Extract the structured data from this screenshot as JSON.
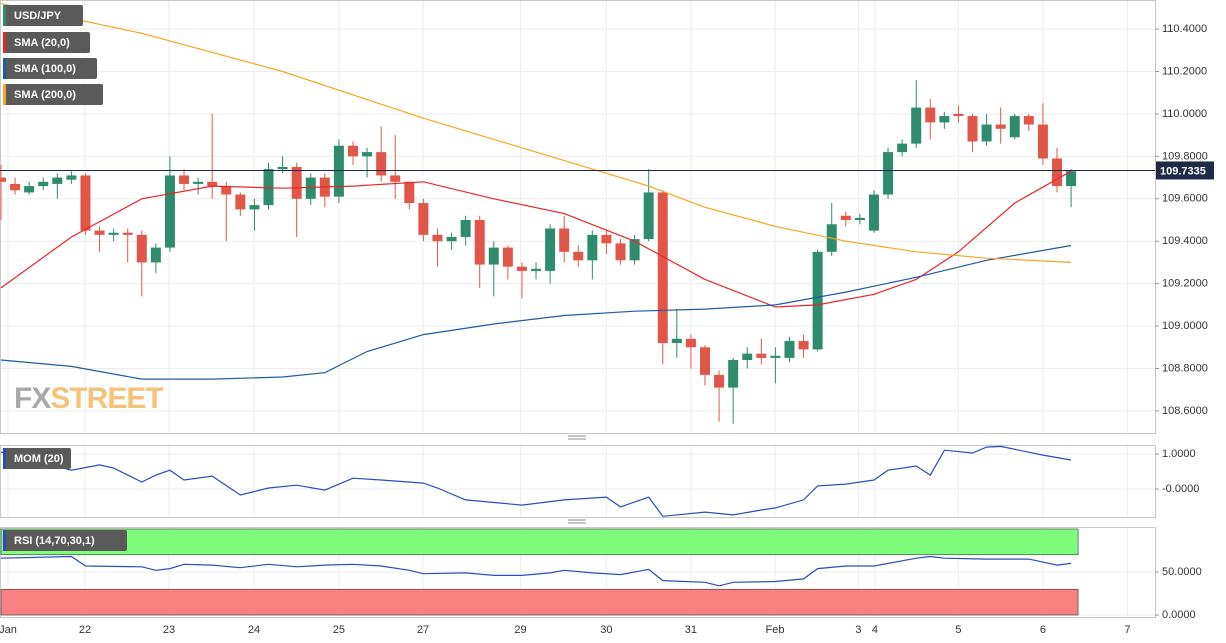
{
  "chart_data": [
    {
      "type": "candlestick",
      "candles": {
        "name": "USD/JPY",
        "up_color": "#2e8b6e",
        "down_color": "#e0574a",
        "open": [
          109.7,
          109.67,
          109.63,
          109.66,
          109.67,
          109.69,
          109.71,
          109.45,
          109.43,
          109.44,
          109.43,
          109.3,
          109.37,
          109.71,
          109.67,
          109.68,
          109.66,
          109.62,
          109.55,
          109.57,
          109.74,
          109.75,
          109.6,
          109.7,
          109.61,
          109.85,
          109.8,
          109.82,
          109.71,
          109.68,
          109.58,
          109.43,
          109.4,
          109.42,
          109.5,
          109.29,
          109.37,
          109.28,
          109.26,
          109.26,
          109.46,
          109.35,
          109.31,
          109.43,
          109.39,
          109.31,
          109.41,
          109.63,
          108.92,
          108.94,
          108.9,
          108.77,
          108.71,
          108.84,
          108.87,
          108.85,
          108.85,
          108.93,
          108.89,
          109.35,
          109.52,
          109.5,
          109.45,
          109.62,
          109.82,
          109.86,
          110.03,
          109.96,
          110.0,
          109.99,
          109.87,
          109.95,
          109.89,
          109.99,
          109.95,
          109.79,
          109.66
        ],
        "high": [
          109.76,
          109.7,
          109.68,
          109.7,
          109.72,
          109.73,
          109.72,
          109.47,
          109.46,
          109.46,
          109.45,
          109.39,
          109.8,
          109.74,
          109.7,
          110.0,
          109.68,
          109.63,
          109.6,
          109.77,
          109.8,
          109.77,
          109.72,
          109.72,
          109.88,
          109.87,
          109.84,
          109.94,
          109.9,
          109.62,
          109.6,
          109.46,
          109.44,
          109.52,
          109.52,
          109.4,
          109.38,
          109.3,
          109.3,
          109.48,
          109.52,
          109.38,
          109.45,
          109.45,
          109.41,
          109.43,
          109.74,
          109.64,
          109.08,
          108.96,
          108.91,
          108.79,
          108.85,
          108.9,
          108.94,
          108.9,
          108.95,
          108.96,
          109.36,
          109.58,
          109.54,
          109.53,
          109.64,
          109.84,
          109.88,
          110.16,
          110.07,
          110.01,
          110.04,
          110.0,
          110.0,
          110.03,
          110.0,
          110.0,
          110.05,
          109.84,
          109.74
        ],
        "low": [
          109.5,
          109.62,
          109.62,
          109.64,
          109.6,
          109.67,
          109.43,
          109.35,
          109.4,
          109.3,
          109.14,
          109.25,
          109.35,
          109.64,
          109.62,
          109.6,
          109.4,
          109.52,
          109.45,
          109.55,
          109.72,
          109.42,
          109.57,
          109.56,
          109.58,
          109.76,
          109.7,
          109.68,
          109.6,
          109.55,
          109.4,
          109.28,
          109.36,
          109.38,
          109.18,
          109.14,
          109.22,
          109.13,
          109.22,
          109.2,
          109.3,
          109.28,
          109.22,
          109.34,
          109.29,
          109.29,
          109.4,
          108.82,
          108.85,
          108.8,
          108.72,
          108.55,
          108.54,
          108.8,
          108.82,
          108.73,
          108.83,
          108.85,
          108.88,
          109.33,
          109.47,
          109.48,
          109.44,
          109.6,
          109.8,
          109.84,
          109.88,
          109.93,
          109.96,
          109.82,
          109.85,
          109.86,
          109.88,
          109.92,
          109.76,
          109.63,
          109.56
        ],
        "close": [
          109.68,
          109.64,
          109.66,
          109.68,
          109.7,
          109.71,
          109.45,
          109.43,
          109.44,
          109.43,
          109.3,
          109.37,
          109.71,
          109.67,
          109.68,
          109.66,
          109.62,
          109.55,
          109.57,
          109.74,
          109.75,
          109.6,
          109.7,
          109.61,
          109.85,
          109.8,
          109.82,
          109.71,
          109.68,
          109.58,
          109.43,
          109.4,
          109.42,
          109.5,
          109.29,
          109.37,
          109.28,
          109.26,
          109.27,
          109.46,
          109.35,
          109.31,
          109.43,
          109.39,
          109.31,
          109.41,
          109.63,
          108.92,
          108.94,
          108.9,
          108.77,
          108.71,
          108.84,
          108.87,
          108.85,
          108.86,
          108.93,
          108.89,
          109.35,
          109.48,
          109.5,
          109.51,
          109.62,
          109.82,
          109.86,
          110.03,
          109.96,
          109.99,
          109.99,
          109.87,
          109.95,
          109.93,
          109.99,
          109.95,
          109.79,
          109.66,
          109.73
        ]
      },
      "overlays": [
        {
          "name": "SMA (20,0)",
          "color": "#e8262a",
          "x": [
            0,
            5,
            10,
            15,
            20,
            25,
            30,
            35,
            40,
            45,
            50,
            55,
            58,
            62,
            65,
            68,
            72,
            76
          ],
          "values": [
            109.18,
            109.42,
            109.6,
            109.66,
            109.65,
            109.66,
            109.68,
            109.6,
            109.53,
            109.4,
            109.22,
            109.09,
            109.1,
            109.15,
            109.22,
            109.35,
            109.58,
            109.73
          ]
        },
        {
          "name": "SMA (100,0)",
          "color": "#1e5aa8",
          "x": [
            0,
            5,
            10,
            15,
            20,
            23,
            26,
            30,
            35,
            40,
            45,
            50,
            55,
            60,
            65,
            70,
            76
          ],
          "values": [
            108.84,
            108.81,
            108.75,
            108.75,
            108.76,
            108.78,
            108.88,
            108.96,
            109.01,
            109.05,
            109.07,
            109.08,
            109.1,
            109.16,
            109.23,
            109.31,
            109.38
          ]
        },
        {
          "name": "SMA (200,0)",
          "color": "#f5a623",
          "x": [
            0,
            10,
            20,
            30,
            40,
            46,
            50,
            55,
            60,
            65,
            70,
            76
          ],
          "values": [
            110.52,
            110.38,
            110.2,
            109.98,
            109.78,
            109.66,
            109.56,
            109.47,
            109.4,
            109.35,
            109.32,
            109.3
          ]
        }
      ],
      "last_price": {
        "value": 109.7335,
        "label": "109.7335"
      },
      "ylim": [
        108.496,
        110.537
      ],
      "yticks": [
        {
          "value": 108.6,
          "label": "108.6000"
        },
        {
          "value": 108.8,
          "label": "108.8000"
        },
        {
          "value": 109.0,
          "label": "109.0000"
        },
        {
          "value": 109.2,
          "label": "109.2000"
        },
        {
          "value": 109.4,
          "label": "109.4000"
        },
        {
          "value": 109.6,
          "label": "109.6000"
        },
        {
          "value": 109.8,
          "label": "109.8000"
        },
        {
          "value": 110.0,
          "label": "110.0000"
        },
        {
          "value": 110.2,
          "label": "110.2000"
        },
        {
          "value": 110.4,
          "label": "110.4000"
        }
      ],
      "xlim": [
        -0.07,
        81.96
      ],
      "xticks": [
        {
          "value": 0.5,
          "label": "Jan"
        },
        {
          "value": 5.97,
          "label": "22"
        },
        {
          "value": 11.93,
          "label": "23"
        },
        {
          "value": 17.97,
          "label": "24"
        },
        {
          "value": 24.0,
          "label": "25"
        },
        {
          "value": 29.97,
          "label": "27"
        },
        {
          "value": 36.9,
          "label": "29"
        },
        {
          "value": 43.0,
          "label": "30"
        },
        {
          "value": 49.0,
          "label": "31"
        },
        {
          "value": 54.97,
          "label": "Feb"
        },
        {
          "value": 60.9,
          "label": "3"
        },
        {
          "value": 62.07,
          "label": "4"
        },
        {
          "value": 68.0,
          "label": "5"
        },
        {
          "value": 74.0,
          "label": "6"
        },
        {
          "value": 80.0,
          "label": "7"
        }
      ],
      "watermark": [
        "FX",
        "STREET"
      ]
    },
    {
      "type": "line",
      "series": [
        {
          "name": "MOM (20)",
          "color": "#2a4cc0",
          "x": [
            0,
            5,
            7,
            8,
            10,
            11,
            12,
            13,
            15,
            17,
            19,
            21,
            23,
            25,
            27,
            30,
            31,
            33,
            37,
            40,
            43,
            44,
            46,
            47,
            50,
            52,
            54,
            55,
            57,
            58,
            60,
            62,
            63,
            65,
            66,
            67,
            69,
            70,
            71,
            74,
            76
          ],
          "values": [
            1.06,
            0.54,
            0.69,
            0.6,
            0.2,
            0.4,
            0.54,
            0.26,
            0.37,
            -0.17,
            0.03,
            0.11,
            -0.03,
            0.31,
            0.26,
            0.17,
            0.03,
            -0.31,
            -0.46,
            -0.31,
            -0.23,
            -0.51,
            -0.23,
            -0.78,
            -0.66,
            -0.74,
            -0.6,
            -0.54,
            -0.31,
            0.09,
            0.14,
            0.26,
            0.54,
            0.66,
            0.4,
            1.11,
            1.03,
            1.2,
            1.22,
            0.97,
            0.83
          ]
        }
      ],
      "ylim": [
        -0.8,
        1.26
      ],
      "yticks": [
        {
          "value": 1,
          "label": "1.0000"
        },
        {
          "value": 0,
          "label": "-0.0000"
        }
      ]
    },
    {
      "type": "line",
      "series": [
        {
          "name": "RSI (14,70,30,1)",
          "color": "#2a4cc0",
          "x": [
            0,
            5,
            6,
            10,
            11,
            12,
            13,
            15,
            17,
            19,
            21,
            23,
            25,
            27,
            29,
            30,
            33,
            35,
            37,
            39,
            40,
            42,
            44,
            46,
            47,
            50,
            51,
            52,
            55,
            57,
            58,
            60,
            62,
            64,
            65,
            66,
            67,
            70,
            73,
            75,
            76
          ],
          "values": [
            66,
            68,
            57,
            56,
            52,
            54,
            59,
            58,
            55,
            59,
            56,
            58,
            59,
            57,
            52,
            48,
            49,
            46,
            46,
            49,
            52,
            49,
            47,
            53,
            40,
            38,
            34,
            38,
            39,
            42,
            54,
            57,
            57,
            63,
            66,
            68,
            66,
            65,
            65,
            58,
            60
          ]
        }
      ],
      "bands": [
        {
          "from": 70,
          "to": 100,
          "color": "#7dfc7d"
        },
        {
          "from": 0,
          "to": 30,
          "color": "#f88080"
        }
      ],
      "ylim": [
        -2.3,
        102.3
      ],
      "yticks": [
        {
          "value": 50,
          "label": "50.0000"
        },
        {
          "value": 0,
          "label": "0.0000"
        }
      ]
    }
  ]
}
